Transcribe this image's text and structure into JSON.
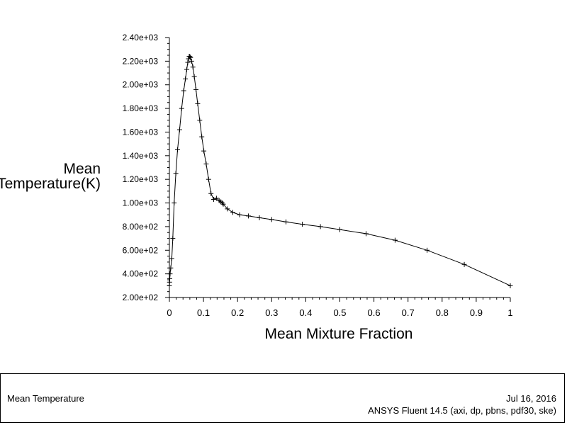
{
  "chart_data": {
    "type": "line",
    "title": "",
    "xlabel": "Mean Mixture Fraction",
    "ylabel_lines": [
      "Mean",
      "Temperature(K)"
    ],
    "xlim": [
      0,
      1
    ],
    "ylim": [
      200,
      2400
    ],
    "x_ticks": [
      0,
      0.1,
      0.2,
      0.3,
      0.4,
      0.5,
      0.6,
      0.7,
      0.8,
      0.9,
      1
    ],
    "x_tick_labels": [
      "0",
      "0.1",
      "0.2",
      "0.3",
      "0.4",
      "0.5",
      "0.6",
      "0.7",
      "0.8",
      "0.9",
      "1"
    ],
    "y_ticks": [
      200,
      400,
      600,
      800,
      1000,
      1200,
      1400,
      1600,
      1800,
      2000,
      2200,
      2400
    ],
    "y_tick_labels": [
      "2.00e+02",
      "4.00e+02",
      "6.00e+02",
      "8.00e+02",
      "1.00e+03",
      "1.20e+03",
      "1.40e+03",
      "1.60e+03",
      "1.80e+03",
      "2.00e+03",
      "2.20e+03",
      "2.40e+03"
    ],
    "grid": false,
    "marker": "plus",
    "series": [
      {
        "x": [
          0,
          0.0005,
          0.001,
          0.002,
          0.004,
          0.007,
          0.01,
          0.014,
          0.019,
          0.024,
          0.03,
          0.036,
          0.042,
          0.047,
          0.051,
          0.054,
          0.056,
          0.058,
          0.06,
          0.062,
          0.065,
          0.069,
          0.073,
          0.078,
          0.083,
          0.089,
          0.095,
          0.101,
          0.108,
          0.115,
          0.122,
          0.13,
          0.138,
          0.146,
          0.151,
          0.155,
          0.158,
          0.17,
          0.186,
          0.206,
          0.232,
          0.264,
          0.3,
          0.342,
          0.39,
          0.443,
          0.5,
          0.577,
          0.662,
          0.756,
          0.865,
          1.0
        ],
        "y": [
          300,
          330,
          360,
          400,
          450,
          530,
          700,
          1000,
          1250,
          1450,
          1620,
          1800,
          1950,
          2050,
          2130,
          2190,
          2220,
          2240,
          2240,
          2230,
          2200,
          2150,
          2070,
          1960,
          1840,
          1700,
          1560,
          1440,
          1330,
          1200,
          1080,
          1030,
          1040,
          1020,
          1010,
          1000,
          990,
          950,
          920,
          900,
          890,
          875,
          860,
          840,
          820,
          800,
          775,
          740,
          685,
          600,
          480,
          300
        ]
      }
    ]
  },
  "footer": {
    "left_title": "Mean Temperature",
    "date": "Jul 16, 2016",
    "software": "ANSYS Fluent 14.5 (axi, dp, pbns, pdf30, ske)"
  }
}
